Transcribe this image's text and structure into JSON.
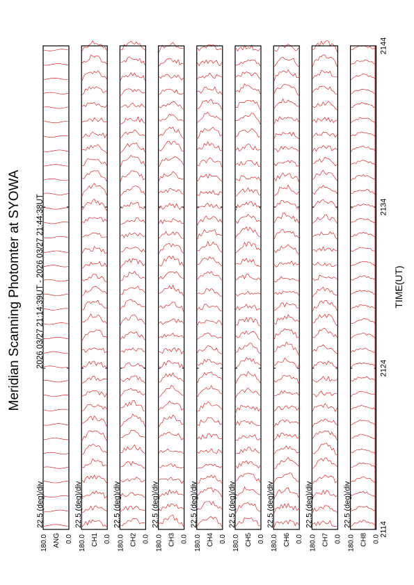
{
  "title": "Meridian Scanning Photomter at SYOWA",
  "time_range": "2026 03/27 21:14:39UT - 2026 03/27 21:44:38UT",
  "colors": {
    "trace": "#e00000",
    "frame": "#000000",
    "background": "#ffffff"
  },
  "chart_data": {
    "type": "line",
    "title": "Meridian Scanning Photomter at SYOWA",
    "subtitle": "2026 03/27 21:14:39UT - 2026 03/27 21:44:38UT",
    "xlabel": "TIME(UT)",
    "x_ticks": [
      "2114",
      "2124",
      "2134",
      "2144"
    ],
    "x_range_ut": [
      "2114",
      "2144"
    ],
    "grid": false,
    "panels": [
      {
        "label": "ANG",
        "scale": "22.5 (deg)/div",
        "y_ticks": [
          "180.0",
          "0.0"
        ],
        "ylim": [
          0,
          180
        ]
      },
      {
        "label": "CH1",
        "scale": "22.5 (deg)/div",
        "y_ticks": [
          "180.0",
          "0.0"
        ],
        "ylim": [
          0,
          180
        ]
      },
      {
        "label": "CH2",
        "scale": "22.5 (deg)/div",
        "y_ticks": [
          "180.0",
          "0.0"
        ],
        "ylim": [
          0,
          180
        ]
      },
      {
        "label": "CH3",
        "scale": "22.5 (deg)/div",
        "y_ticks": [
          "180.0",
          "0.0"
        ],
        "ylim": [
          0,
          180
        ]
      },
      {
        "label": "CH4",
        "scale": "22.5 (deg)/div",
        "y_ticks": [
          "180.0",
          "0.0"
        ],
        "ylim": [
          0,
          180
        ]
      },
      {
        "label": "CH5",
        "scale": "22.5 (deg)/div",
        "y_ticks": [
          "180.0",
          "0.0"
        ],
        "ylim": [
          0,
          180
        ]
      },
      {
        "label": "CH6",
        "scale": "22.5 (deg)/div",
        "y_ticks": [
          "180.0",
          "0.0"
        ],
        "ylim": [
          0,
          180
        ]
      },
      {
        "label": "CH7",
        "scale": "22.5 (deg)/div",
        "y_ticks": [
          "180.0",
          "0.0"
        ],
        "ylim": [
          0,
          180
        ]
      },
      {
        "label": "CH8",
        "scale": "22.5 (deg)/div",
        "y_ticks": [
          "180.0",
          "0.0"
        ],
        "ylim": [
          0,
          180
        ]
      }
    ]
  }
}
